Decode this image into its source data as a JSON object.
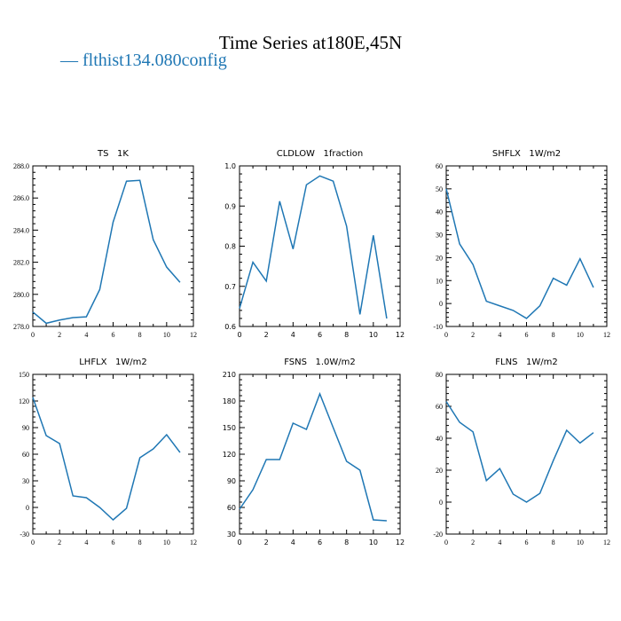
{
  "title": "Time Series at180E,45N",
  "legend": [
    {
      "name": "flthist134.080config",
      "color": "#1f77b4",
      "marker": "—"
    }
  ],
  "chart_data": [
    {
      "type": "line",
      "title": "TS   1K",
      "x": [
        0,
        1,
        2,
        3,
        4,
        5,
        6,
        7,
        8,
        9,
        10,
        11
      ],
      "series": [
        {
          "color": "#1f77b4",
          "values": [
            278.9,
            278.2,
            278.4,
            278.55,
            278.6,
            280.3,
            284.5,
            287.05,
            287.1,
            283.4,
            281.7,
            280.75
          ]
        }
      ],
      "xlim": [
        0,
        12
      ],
      "ylim": [
        278,
        288
      ],
      "xticks": [
        0,
        2,
        4,
        6,
        8,
        10,
        12
      ],
      "yticks": [
        278.0,
        280.0,
        282.0,
        284.0,
        286.0,
        288.0
      ],
      "ytick_labels": [
        "278.0",
        "280.0",
        "282.0",
        "284.0",
        "286.0",
        "288.0"
      ],
      "tick_font": "serif"
    },
    {
      "type": "line",
      "title": "CLDLOW   1fraction",
      "x": [
        0,
        1,
        2,
        3,
        4,
        5,
        6,
        7,
        8,
        9,
        10,
        11
      ],
      "series": [
        {
          "color": "#1f77b4",
          "values": [
            0.645,
            0.76,
            0.713,
            0.912,
            0.793,
            0.953,
            0.975,
            0.962,
            0.85,
            0.63,
            0.827,
            0.62
          ]
        }
      ],
      "xlim": [
        0,
        12
      ],
      "ylim": [
        0.6,
        1.0
      ],
      "xticks": [
        0,
        2,
        4,
        6,
        8,
        10,
        12
      ],
      "yticks": [
        0.6,
        0.7,
        0.8,
        0.9,
        1.0
      ],
      "ytick_labels": [
        "0.6",
        "0.7",
        "0.8",
        "0.9",
        "1.0"
      ],
      "tick_font": "sans"
    },
    {
      "type": "line",
      "title": "SHFLX   1W/m2",
      "x": [
        0,
        1,
        2,
        3,
        4,
        5,
        6,
        7,
        8,
        9,
        10,
        11
      ],
      "series": [
        {
          "color": "#1f77b4",
          "values": [
            50,
            26,
            17,
            1,
            -1,
            -3,
            -6.5,
            -1,
            11,
            8,
            19.5,
            7
          ]
        }
      ],
      "xlim": [
        0,
        12
      ],
      "ylim": [
        -10,
        60
      ],
      "xticks": [
        0,
        2,
        4,
        6,
        8,
        10,
        12
      ],
      "yticks": [
        -10,
        0,
        10,
        20,
        30,
        40,
        50,
        60
      ],
      "ytick_labels": [
        "-10",
        "0",
        "10",
        "20",
        "30",
        "40",
        "50",
        "60"
      ],
      "tick_font": "serif"
    },
    {
      "type": "line",
      "title": "LHFLX   1W/m2",
      "x": [
        0,
        1,
        2,
        3,
        4,
        5,
        6,
        7,
        8,
        9,
        10,
        11
      ],
      "series": [
        {
          "color": "#1f77b4",
          "values": [
            124,
            81,
            72,
            13,
            11,
            0,
            -14,
            -1,
            56,
            66,
            82,
            62
          ]
        }
      ],
      "xlim": [
        0,
        12
      ],
      "ylim": [
        -30,
        150
      ],
      "xticks": [
        0,
        2,
        4,
        6,
        8,
        10,
        12
      ],
      "yticks": [
        -30,
        0,
        30,
        60,
        90,
        120,
        150
      ],
      "ytick_labels": [
        "-30",
        "0",
        "30",
        "60",
        "90",
        "120",
        "150"
      ],
      "tick_font": "serif"
    },
    {
      "type": "line",
      "title": "FSNS   1.0W/m2",
      "x": [
        0,
        1,
        2,
        3,
        4,
        5,
        6,
        7,
        8,
        9,
        10,
        11
      ],
      "series": [
        {
          "color": "#1f77b4",
          "values": [
            58,
            80,
            114,
            114,
            155,
            148,
            188,
            150,
            112,
            102,
            46,
            45
          ]
        }
      ],
      "xlim": [
        0,
        12
      ],
      "ylim": [
        30,
        210
      ],
      "xticks": [
        0,
        2,
        4,
        6,
        8,
        10,
        12
      ],
      "yticks": [
        30,
        60,
        90,
        120,
        150,
        180,
        210
      ],
      "ytick_labels": [
        "30",
        "60",
        "90",
        "120",
        "150",
        "180",
        "210"
      ],
      "tick_font": "sans"
    },
    {
      "type": "line",
      "title": "FLNS   1W/m2",
      "x": [
        0,
        1,
        2,
        3,
        4,
        5,
        6,
        7,
        8,
        9,
        10,
        11
      ],
      "series": [
        {
          "color": "#1f77b4",
          "values": [
            63,
            50,
            44,
            13.5,
            21,
            5,
            0,
            5.5,
            26,
            45,
            37,
            43.5
          ]
        }
      ],
      "xlim": [
        0,
        12
      ],
      "ylim": [
        -20,
        80
      ],
      "xticks": [
        0,
        2,
        4,
        6,
        8,
        10,
        12
      ],
      "yticks": [
        -20,
        0,
        20,
        40,
        60,
        80
      ],
      "ytick_labels": [
        "-20",
        "0",
        "20",
        "40",
        "60",
        "80"
      ],
      "tick_font": "serif"
    }
  ]
}
